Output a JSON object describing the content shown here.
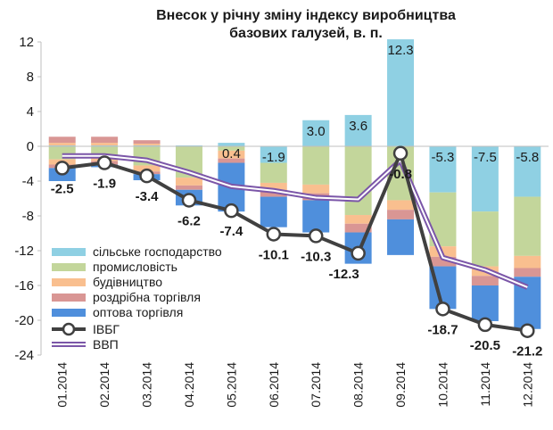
{
  "chart_data": {
    "type": "bar",
    "title_line1": "Внесок у річну зміну індексу виробництва",
    "title_line2": "базових галузей, в. п.",
    "categories": [
      "01.2014",
      "02.2014",
      "03.2014",
      "04.2014",
      "05.2014",
      "06.2014",
      "07.2014",
      "08.2014",
      "09.2014",
      "10.2014",
      "11.2014",
      "12.2014"
    ],
    "ylim": [
      -24,
      12
    ],
    "yticks": [
      "12",
      "8",
      "4",
      "0",
      "-4",
      "-8",
      "-12",
      "-16",
      "-20",
      "-24"
    ],
    "series": [
      {
        "name": "сільське господарство",
        "color": "#8fd0e3",
        "values": [
          0.1,
          0.1,
          0.1,
          0.1,
          0.4,
          -1.9,
          3.0,
          3.6,
          12.3,
          -5.3,
          -7.5,
          -5.8
        ]
      },
      {
        "name": "промисловість",
        "color": "#c3d69b",
        "values": [
          -1.5,
          -1.0,
          -2.2,
          -3.6,
          -0.5,
          -2.3,
          -4.4,
          -7.9,
          -6.2,
          -6.2,
          -6.3,
          -6.8
        ]
      },
      {
        "name": "будівництво",
        "color": "#f9bf8f",
        "values": [
          -0.6,
          -0.7,
          -0.7,
          -0.9,
          -0.9,
          -1.0,
          -1.0,
          -1.0,
          -1.1,
          -1.2,
          -1.1,
          -1.4
        ]
      },
      {
        "name": "роздрібна торгівля",
        "color": "#d99694",
        "values": [
          -0.4,
          -0.4,
          -0.3,
          -0.5,
          -0.5,
          -0.6,
          -0.8,
          -1.0,
          -1.1,
          -1.1,
          -1.1,
          -1.0
        ]
      },
      {
        "name": "оптова торгівля",
        "color": "#4f8fdc",
        "values": [
          -1.5,
          -0.3,
          -0.7,
          -1.8,
          -5.6,
          -3.5,
          -3.7,
          -3.6,
          -4.1,
          -4.9,
          -4.1,
          -6.0
        ]
      }
    ],
    "positive_extra": [
      {
        "name": "промисловість",
        "values": [
          0,
          0,
          0,
          0,
          0,
          0,
          0,
          0,
          0,
          0,
          0,
          0
        ]
      },
      {
        "name": "будівництво",
        "values": [
          0.3,
          0.3,
          0.2,
          0,
          0,
          0,
          0,
          0,
          0,
          0,
          0,
          0
        ]
      },
      {
        "name": "роздрібна торгівля",
        "values": [
          0.7,
          0.7,
          0.4,
          0,
          0,
          0,
          0,
          0,
          0,
          0,
          0,
          0
        ]
      }
    ],
    "ivbg": {
      "name": "ІВБГ",
      "color": "#404040",
      "values": [
        -2.5,
        -1.9,
        -3.4,
        -6.2,
        -7.4,
        -10.1,
        -10.3,
        -12.3,
        -0.8,
        -18.7,
        -20.5,
        -21.2
      ]
    },
    "vvp": {
      "name": "ВВП",
      "color": "#7b56a8",
      "values": [
        -1.1,
        -1.1,
        -1.6,
        -3.0,
        -4.6,
        -5.1,
        -5.9,
        -6.1,
        -1.6,
        -12.8,
        -14.2,
        -16.2
      ]
    },
    "agr_labels": [
      "",
      "",
      "",
      "",
      "0.4",
      "-1.9",
      "3.0",
      "3.6",
      "12.3",
      "-5.3",
      "-7.5",
      "-5.8"
    ],
    "ivbg_labels": [
      "-2.5",
      "-1.9",
      "-3.4",
      "-6.2",
      "-7.4",
      "-10.1",
      "-10.3",
      "-12.3",
      "-0.8",
      "-18.7",
      "-20.5",
      "-21.2"
    ],
    "legend_placement": "bottom-left",
    "grid": false
  },
  "colors": {
    "axis": "#bfbfbf",
    "text": "#1a1a1a"
  }
}
